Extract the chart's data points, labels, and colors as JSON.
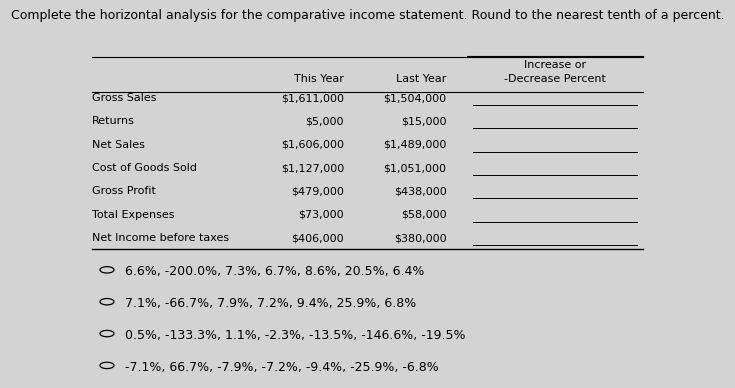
{
  "title": "Complete the horizontal analysis for the comparative income statement. Round to the nearest tenth of a percent.",
  "background_color": "#d3d3d3",
  "rows": [
    [
      "Gross Sales",
      "$1,611,000",
      "$1,504,000"
    ],
    [
      "Returns",
      "$5,000",
      "$15,000"
    ],
    [
      "Net Sales",
      "$1,606,000",
      "$1,489,000"
    ],
    [
      "Cost of Goods Sold",
      "$1,127,000",
      "$1,051,000"
    ],
    [
      "Gross Profit",
      "$479,000",
      "$438,000"
    ],
    [
      "Total Expenses",
      "$73,000",
      "$58,000"
    ],
    [
      "Net Income before taxes",
      "$406,000",
      "$380,000"
    ]
  ],
  "options": [
    "6.6%, -200.0%, 7.3%, 6.7%, 8.6%, 20.5%, 6.4%",
    "7.1%, -66.7%, 7.9%, 7.2%, 9.4%, 25.9%, 6.8%",
    "0.5%, -133.3%, 1.1%, -2.3%, -13.5%, -146.6%, -19.5%",
    "-7.1%, 66.7%, -7.9%, -7.2%, -9.4%, -25.9%, -6.8%"
  ],
  "header_fontsize": 8.0,
  "row_fontsize": 8.0,
  "option_fontsize": 9.0,
  "title_fontsize": 9.0
}
